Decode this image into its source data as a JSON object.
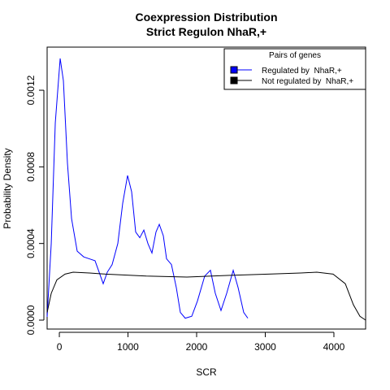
{
  "chart_data": {
    "type": "line",
    "title": "Coexpression Distribution",
    "subtitle": "Strict Regulon NhaR,+",
    "x_label": "SCR",
    "y_label": "Probability Density",
    "xlim": [
      -178,
      4462
    ],
    "ylim": [
      -4.67e-05,
      0.001425
    ],
    "xticks": [
      0,
      1000,
      2000,
      3000,
      4000
    ],
    "yticks": [
      {
        "value": 0,
        "label": "0.0000"
      },
      {
        "value": 0.0004,
        "label": "0.0004"
      },
      {
        "value": 0.0008,
        "label": "0.0008"
      },
      {
        "value": 0.0012,
        "label": "0.0012"
      }
    ],
    "legend_title": "Pairs of genes",
    "legend": "topright",
    "series": [
      {
        "name": "Regulated by  NhaR,+",
        "color": "#0000ff",
        "x": [
          -178,
          -118,
          -59,
          12,
          59,
          118,
          178,
          260,
          355,
          438,
          520,
          580,
          639,
          698,
          769,
          852,
          923,
          994,
          1053,
          1112,
          1172,
          1231,
          1290,
          1349,
          1408,
          1456,
          1515,
          1562,
          1633,
          1704,
          1763,
          1834,
          1929,
          2012,
          2118,
          2201,
          2272,
          2355,
          2438,
          2533,
          2604,
          2686,
          2746
        ],
        "values": [
          1.7e-05,
          0.0004,
          0.00103,
          0.001366,
          0.00125,
          0.00082,
          0.00053,
          0.00036,
          0.00033,
          0.00032,
          0.00031,
          0.00025,
          0.00019,
          0.00025,
          0.00029,
          0.0004,
          0.00061,
          0.000755,
          0.00067,
          0.00046,
          0.00043,
          0.00047,
          0.0004,
          0.00035,
          0.00046,
          0.0005,
          0.00044,
          0.00032,
          0.00029,
          0.00017,
          4e-05,
          1e-05,
          2e-05,
          0.0001,
          0.00023,
          0.00026,
          0.00014,
          5e-05,
          0.00014,
          0.00026,
          0.00017,
          4e-05,
          1e-05
        ]
      },
      {
        "name": "Not regulated by  NhaR,+",
        "color": "#000000",
        "x": [
          -178,
          -118,
          -36,
          83,
          201,
          438,
          675,
          1266,
          1858,
          2450,
          3041,
          3515,
          3751,
          3988,
          4166,
          4284,
          4379,
          4462
        ],
        "values": [
          4e-05,
          0.00014,
          0.00021,
          0.00024,
          0.00025,
          0.000246,
          0.00024,
          0.00023,
          0.000225,
          0.000233,
          0.00024,
          0.000246,
          0.00025,
          0.00024,
          0.00019,
          8e-05,
          2e-05,
          0
        ]
      }
    ]
  }
}
